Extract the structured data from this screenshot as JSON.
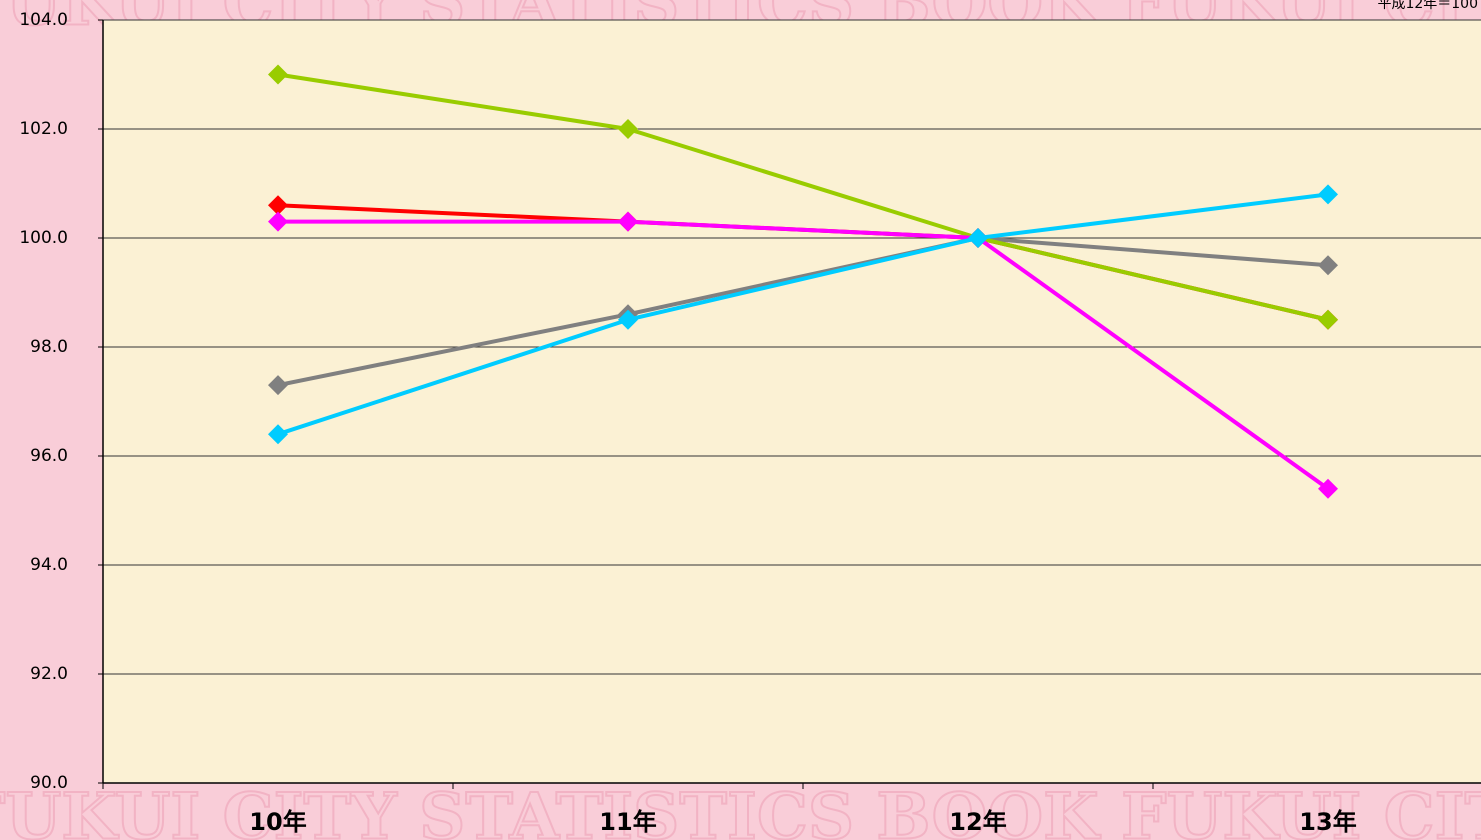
{
  "chart_data": {
    "type": "line",
    "note": "平成12年＝100",
    "categories": [
      "10年",
      "11年",
      "12年",
      "13年"
    ],
    "series": [
      {
        "color": "#ff0000",
        "values": [
          100.6,
          100.3,
          100.0,
          98.5
        ]
      },
      {
        "color": "#808080",
        "values": [
          97.3,
          98.6,
          100.0,
          99.5
        ]
      },
      {
        "color": "#99cc00",
        "values": [
          103.0,
          102.0,
          100.0,
          98.5
        ]
      },
      {
        "color": "#ff00ff",
        "values": [
          100.3,
          100.3,
          100.0,
          95.4
        ]
      },
      {
        "color": "#00ccff",
        "values": [
          96.4,
          98.5,
          100.0,
          100.8
        ]
      }
    ],
    "ylim": [
      90,
      104
    ],
    "yticks": [
      {
        "value": 90,
        "label": "90.0"
      },
      {
        "value": 92,
        "label": "92.0"
      },
      {
        "value": 94,
        "label": "94.0"
      },
      {
        "value": 96,
        "label": "96.0"
      },
      {
        "value": 98,
        "label": "98.0"
      },
      {
        "value": 100,
        "label": "100.0"
      },
      {
        "value": 102,
        "label": "102.0"
      },
      {
        "value": 104,
        "label": "104.0"
      }
    ],
    "grid": true
  }
}
